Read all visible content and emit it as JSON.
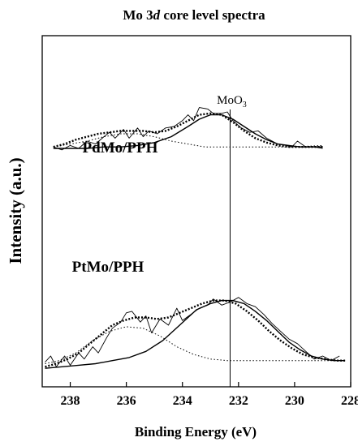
{
  "chart_data": {
    "type": "line",
    "title": {
      "before": "Mo 3",
      "italic": "d",
      "after": " core level spectra"
    },
    "xlabel": "Binding Energy (eV)",
    "ylabel": "Intensity (a.u.)",
    "x_reversed": true,
    "xlim": [
      239,
      228
    ],
    "ylim": [
      0,
      1
    ],
    "x_ticks": [
      238,
      236,
      234,
      232,
      230,
      228
    ],
    "y_ticks_shown": false,
    "reference_line": {
      "x": 232.3,
      "label": {
        "base": "MoO",
        "sub": "3"
      }
    },
    "panels": [
      {
        "label": "PdMo/PPH",
        "series": [
          {
            "role": "experimental",
            "style": "thin-solid",
            "x": [
              238.6,
              238.3,
              238.0,
              237.7,
              237.4,
              237.1,
              236.8,
              236.6,
              236.4,
              236.1,
              235.9,
              235.6,
              235.4,
              235.2,
              234.9,
              234.6,
              234.3,
              234.0,
              233.8,
              233.6,
              233.4,
              233.1,
              232.9,
              232.6,
              232.4,
              232.2,
              231.9,
              231.6,
              231.3,
              231.0,
              230.8,
              230.6,
              230.3,
              230.1,
              229.9,
              229.6,
              229.3,
              229.0
            ],
            "y": [
              0.66,
              0.64,
              0.67,
              0.65,
              0.7,
              0.68,
              0.73,
              0.76,
              0.72,
              0.78,
              0.72,
              0.79,
              0.73,
              0.77,
              0.75,
              0.79,
              0.8,
              0.84,
              0.88,
              0.84,
              0.93,
              0.92,
              0.89,
              0.89,
              0.9,
              0.84,
              0.79,
              0.76,
              0.77,
              0.72,
              0.7,
              0.68,
              0.67,
              0.66,
              0.7,
              0.66,
              0.66,
              0.65
            ]
          },
          {
            "role": "fit-sum",
            "style": "bold-dotted",
            "x": [
              238.6,
              238.2,
              237.8,
              237.4,
              237.0,
              236.6,
              236.2,
              235.8,
              235.4,
              235.0,
              234.6,
              234.2,
              233.8,
              233.4,
              233.0,
              232.6,
              232.2,
              231.8,
              231.4,
              231.0,
              230.6,
              230.2,
              229.8,
              229.4,
              229.0
            ],
            "y": [
              0.66,
              0.68,
              0.71,
              0.73,
              0.75,
              0.76,
              0.77,
              0.77,
              0.77,
              0.76,
              0.77,
              0.8,
              0.84,
              0.88,
              0.89,
              0.88,
              0.83,
              0.77,
              0.72,
              0.69,
              0.67,
              0.66,
              0.66,
              0.66,
              0.66
            ]
          },
          {
            "role": "component-low-energy",
            "style": "solid",
            "x": [
              238.6,
              238.0,
              237.4,
              236.8,
              236.2,
              235.6,
              235.0,
              234.4,
              233.8,
              233.4,
              233.0,
              232.6,
              232.2,
              231.8,
              231.4,
              231.0,
              230.6,
              230.2,
              229.8,
              229.4,
              229.0
            ],
            "y": [
              0.65,
              0.65,
              0.65,
              0.66,
              0.66,
              0.67,
              0.69,
              0.73,
              0.8,
              0.85,
              0.88,
              0.88,
              0.85,
              0.8,
              0.75,
              0.71,
              0.68,
              0.67,
              0.66,
              0.66,
              0.66
            ]
          },
          {
            "role": "component-high-energy",
            "style": "thin-dotted",
            "x": [
              238.6,
              238.0,
              237.4,
              236.8,
              236.2,
              235.6,
              235.0,
              234.4,
              233.8,
              233.2,
              232.6,
              232.0,
              231.0,
              230.0,
              229.0
            ],
            "y": [
              0.66,
              0.68,
              0.7,
              0.73,
              0.75,
              0.75,
              0.73,
              0.7,
              0.68,
              0.66,
              0.66,
              0.66,
              0.66,
              0.66,
              0.67
            ]
          }
        ]
      },
      {
        "label": "PtMo/PPH",
        "series": [
          {
            "role": "experimental",
            "style": "thin-solid",
            "x": [
              238.9,
              238.7,
              238.5,
              238.2,
              238.0,
              237.7,
              237.5,
              237.2,
              237.0,
              236.7,
              236.5,
              236.2,
              236.0,
              235.8,
              235.5,
              235.3,
              235.1,
              234.8,
              234.5,
              234.2,
              234.0,
              233.7,
              233.4,
              233.1,
              232.9,
              232.6,
              232.3,
              232.0,
              231.7,
              231.4,
              231.1,
              230.8,
              230.5,
              230.2,
              229.9,
              229.6,
              229.3,
              229.0,
              228.7,
              228.4
            ],
            "y": [
              0.06,
              0.1,
              0.03,
              0.1,
              0.04,
              0.12,
              0.08,
              0.16,
              0.12,
              0.22,
              0.28,
              0.32,
              0.38,
              0.39,
              0.32,
              0.36,
              0.25,
              0.34,
              0.3,
              0.41,
              0.33,
              0.37,
              0.41,
              0.43,
              0.47,
              0.43,
              0.45,
              0.48,
              0.44,
              0.42,
              0.37,
              0.31,
              0.26,
              0.21,
              0.18,
              0.13,
              0.08,
              0.1,
              0.07,
              0.1
            ]
          },
          {
            "role": "fit-sum",
            "style": "bold-dotted",
            "x": [
              238.9,
              238.5,
              238.1,
              237.7,
              237.3,
              236.9,
              236.5,
              236.1,
              235.7,
              235.3,
              234.9,
              234.5,
              234.1,
              233.7,
              233.3,
              232.9,
              232.5,
              232.1,
              231.7,
              231.3,
              230.9,
              230.5,
              230.1,
              229.7,
              229.3,
              228.9,
              228.5,
              228.2
            ],
            "y": [
              0.03,
              0.05,
              0.08,
              0.12,
              0.18,
              0.24,
              0.3,
              0.33,
              0.35,
              0.35,
              0.34,
              0.35,
              0.38,
              0.41,
              0.44,
              0.46,
              0.46,
              0.44,
              0.39,
              0.33,
              0.26,
              0.2,
              0.15,
              0.11,
              0.09,
              0.08,
              0.07,
              0.07
            ]
          },
          {
            "role": "component-low-energy",
            "style": "solid",
            "x": [
              238.9,
              238.3,
              237.7,
              237.1,
              236.5,
              235.9,
              235.3,
              234.7,
              234.1,
              233.5,
              233.0,
              232.6,
              232.2,
              231.8,
              231.4,
              231.0,
              230.6,
              230.2,
              229.8,
              229.4,
              229.0,
              228.6,
              228.2
            ],
            "y": [
              0.02,
              0.03,
              0.04,
              0.05,
              0.07,
              0.09,
              0.13,
              0.2,
              0.3,
              0.4,
              0.44,
              0.46,
              0.46,
              0.44,
              0.39,
              0.33,
              0.26,
              0.19,
              0.14,
              0.1,
              0.08,
              0.07,
              0.07
            ]
          },
          {
            "role": "component-high-energy",
            "style": "thin-dotted",
            "x": [
              238.9,
              238.4,
              237.8,
              237.2,
              236.6,
              236.0,
              235.4,
              234.8,
              234.2,
              233.6,
              233.0,
              232.4,
              231.6,
              230.8,
              230.0,
              229.2,
              228.2
            ],
            "y": [
              0.05,
              0.07,
              0.12,
              0.2,
              0.26,
              0.29,
              0.28,
              0.23,
              0.16,
              0.11,
              0.08,
              0.07,
              0.07,
              0.07,
              0.07,
              0.07,
              0.07
            ]
          }
        ]
      }
    ]
  }
}
